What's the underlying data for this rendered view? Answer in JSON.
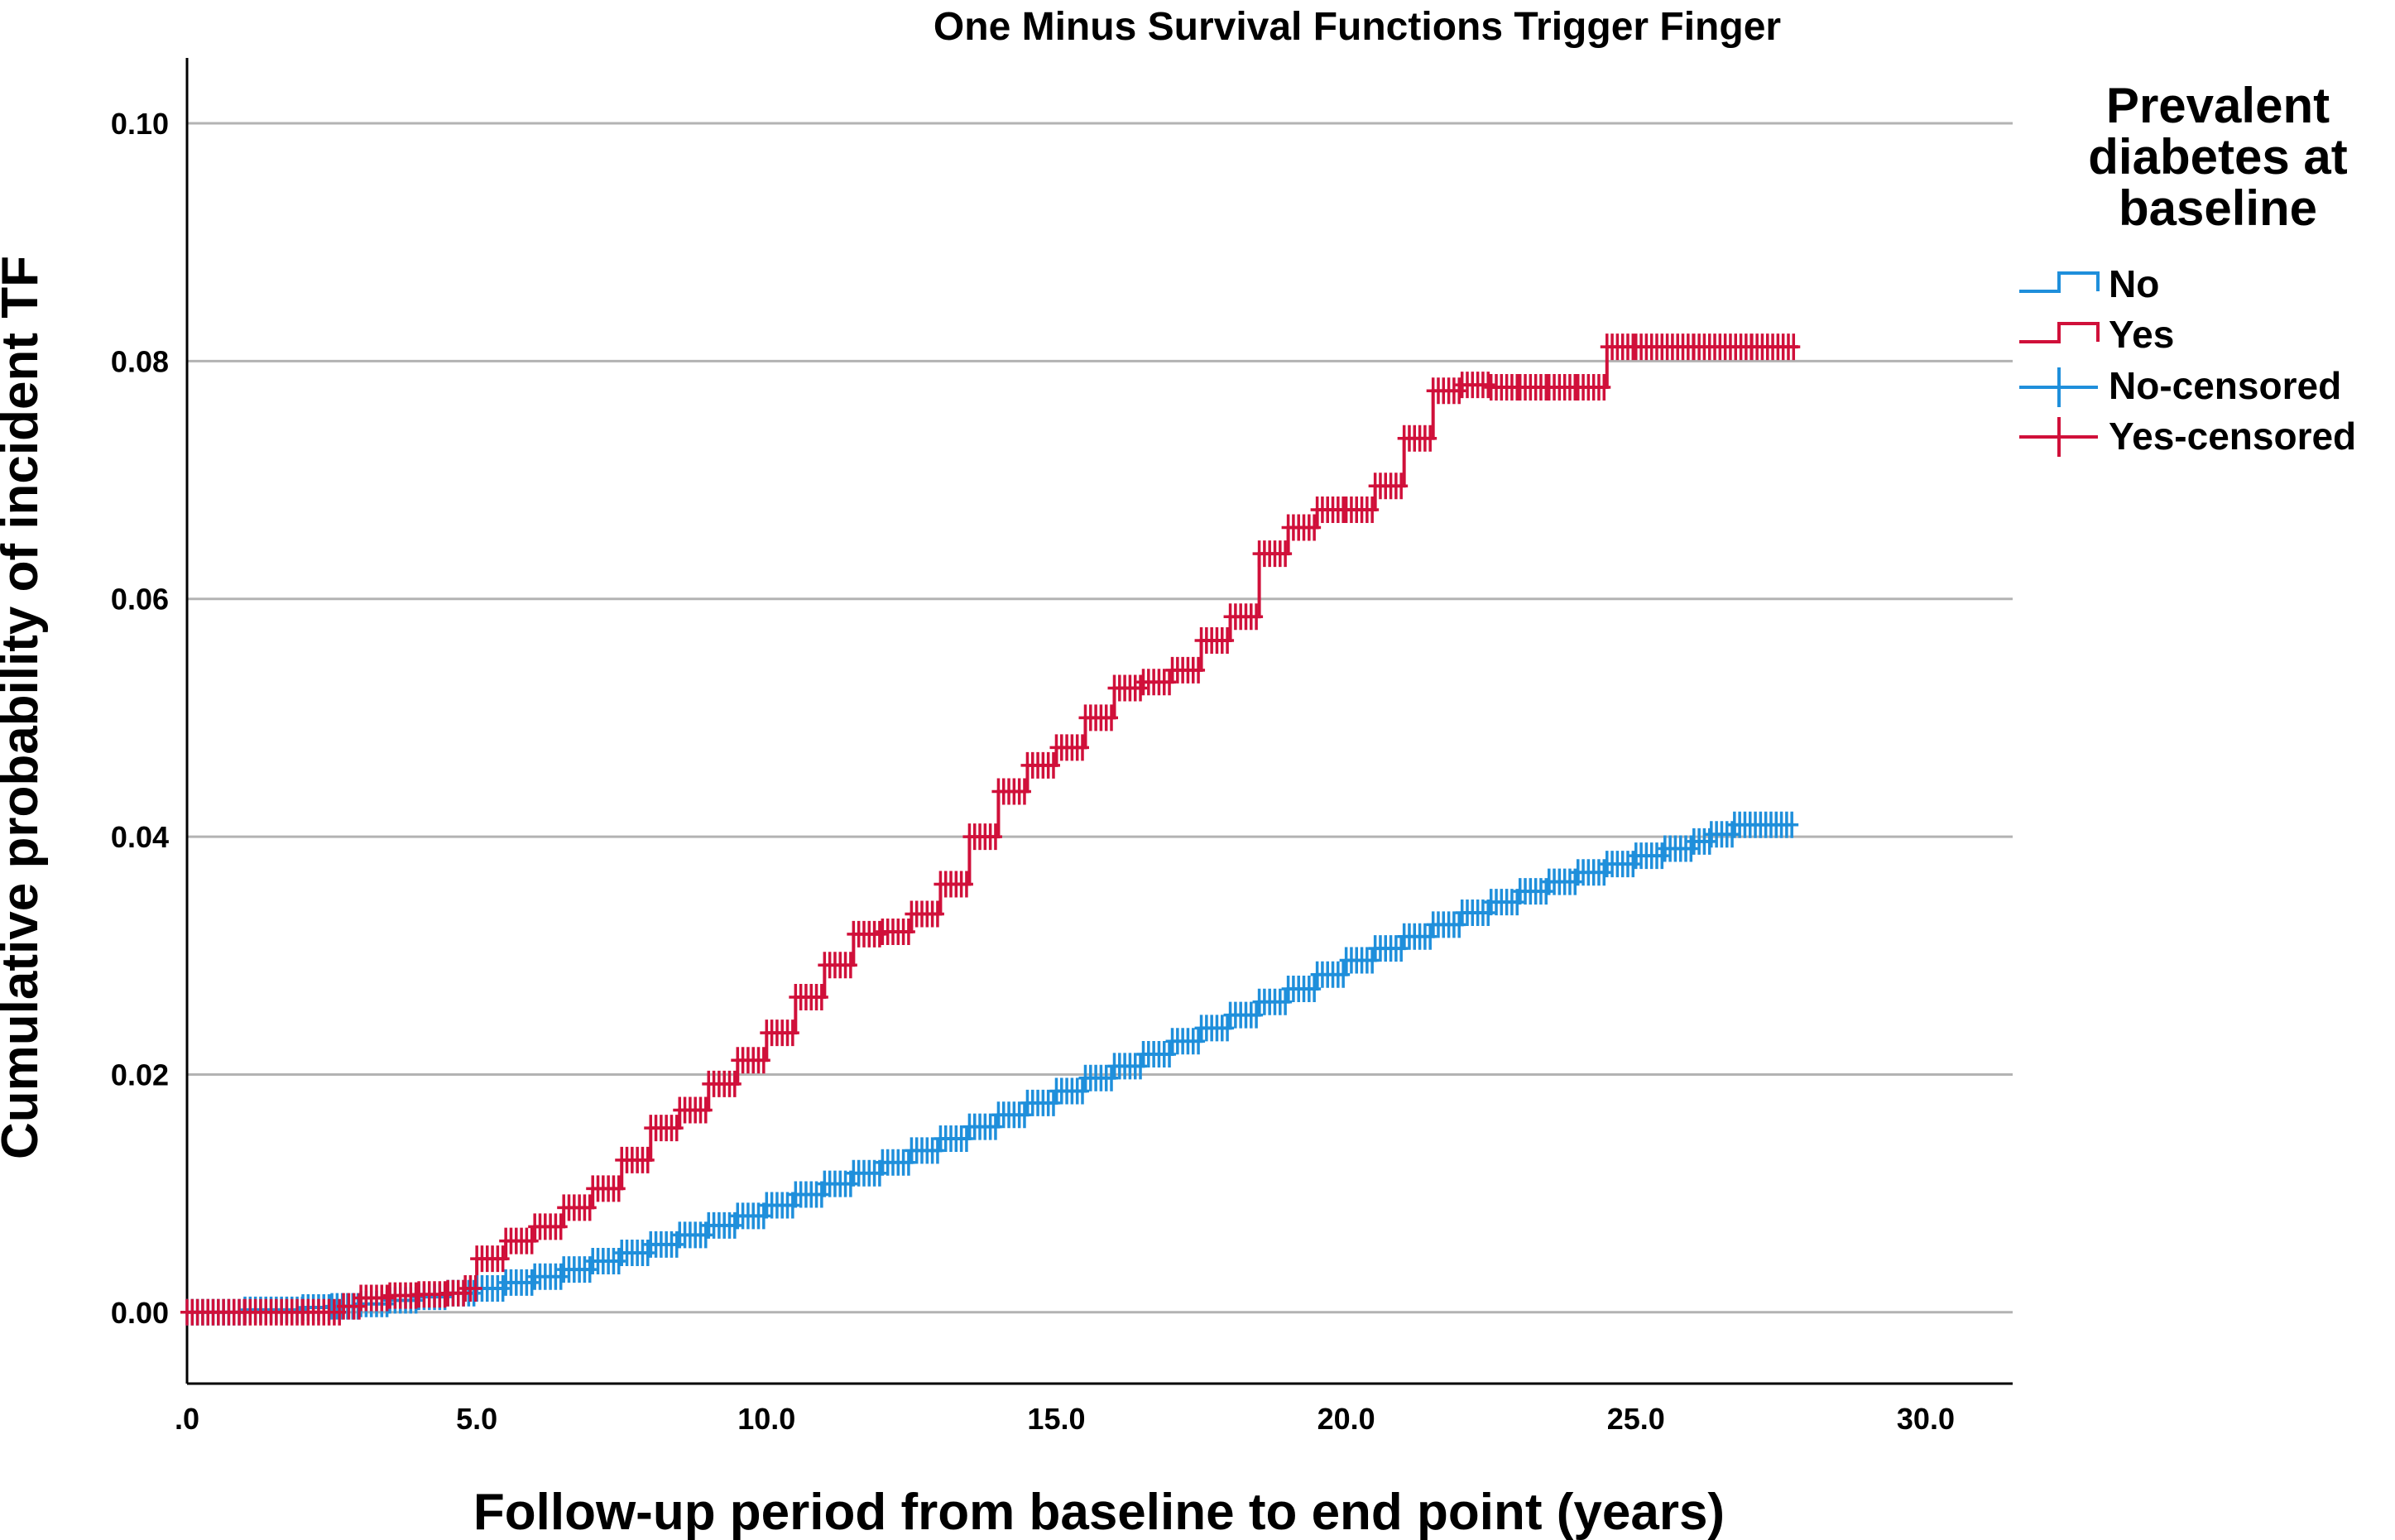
{
  "chart_data": {
    "type": "line",
    "title": "One Minus Survival Functions Trigger Finger",
    "xlabel": "Follow-up period from baseline to end point (years)",
    "ylabel": "Cumulative probability of incident TF",
    "xlim": [
      0,
      31.5
    ],
    "ylim": [
      -0.006,
      0.1055
    ],
    "x_ticks": [
      0,
      5,
      10,
      15,
      20,
      25,
      30
    ],
    "x_tick_labels": [
      ".0",
      "5.0",
      "10.0",
      "15.0",
      "20.0",
      "25.0",
      "30.0"
    ],
    "y_ticks": [
      0,
      0.02,
      0.04,
      0.06,
      0.08,
      0.1
    ],
    "y_tick_labels": [
      "0.00",
      "0.02",
      "0.04",
      "0.06",
      "0.08",
      "0.10"
    ],
    "grid": "horizontal",
    "legend": {
      "title": "Prevalent diabetes at baseline",
      "title_lines": [
        "Prevalent",
        "diabetes at",
        "baseline"
      ],
      "position": "right",
      "entries": [
        "No",
        "Yes",
        "No-censored",
        "Yes-censored"
      ]
    },
    "series": [
      {
        "name": "No",
        "color": "#1f8fdb",
        "x": [
          0,
          1,
          2,
          2.5,
          3,
          3.5,
          4,
          4.5,
          5,
          5.5,
          6,
          6.5,
          7,
          7.5,
          8,
          8.5,
          9,
          9.5,
          10,
          10.5,
          11,
          11.5,
          12,
          12.5,
          13,
          13.5,
          14,
          14.5,
          15,
          15.5,
          16,
          16.5,
          17,
          17.5,
          18,
          18.5,
          19,
          19.5,
          20,
          20.5,
          21,
          21.5,
          22,
          22.5,
          23,
          23.5,
          24,
          24.5,
          25,
          25.5,
          26,
          26.3,
          26.7,
          27.7
        ],
        "y": [
          0,
          0.0002,
          0.0004,
          0.0005,
          0.0007,
          0.001,
          0.0013,
          0.0016,
          0.002,
          0.0025,
          0.003,
          0.0036,
          0.0043,
          0.005,
          0.0057,
          0.0065,
          0.0073,
          0.0081,
          0.009,
          0.0099,
          0.0108,
          0.0117,
          0.0126,
          0.0136,
          0.0146,
          0.0156,
          0.0166,
          0.0176,
          0.0186,
          0.0197,
          0.0207,
          0.0217,
          0.0228,
          0.0239,
          0.025,
          0.0261,
          0.0272,
          0.0284,
          0.0296,
          0.0306,
          0.0316,
          0.0326,
          0.0336,
          0.0345,
          0.0354,
          0.0362,
          0.037,
          0.0377,
          0.0384,
          0.039,
          0.0396,
          0.0402,
          0.041,
          0.041
        ]
      },
      {
        "name": "Yes",
        "color": "#d0103a",
        "x": [
          0,
          1,
          2,
          2.7,
          3,
          3.5,
          4,
          4.5,
          4.8,
          5,
          5.5,
          6,
          6.5,
          7,
          7.5,
          8,
          8.5,
          9,
          9.5,
          10,
          10.5,
          11,
          11.5,
          12,
          12.5,
          13,
          13.5,
          14,
          14.5,
          15,
          15.5,
          16,
          16.5,
          17,
          17.5,
          18,
          18.5,
          19,
          19.5,
          20,
          20.5,
          21,
          21.5,
          22,
          22.5,
          23,
          23.5,
          24,
          24.5,
          25,
          26,
          27,
          27.8
        ],
        "y": [
          0,
          0,
          0,
          0.0005,
          0.0012,
          0.0014,
          0.0015,
          0.0016,
          0.002,
          0.0045,
          0.006,
          0.0072,
          0.0088,
          0.0104,
          0.0128,
          0.0155,
          0.017,
          0.0192,
          0.0212,
          0.0235,
          0.0265,
          0.0292,
          0.0318,
          0.032,
          0.0335,
          0.036,
          0.04,
          0.0438,
          0.046,
          0.0475,
          0.05,
          0.0525,
          0.053,
          0.054,
          0.0565,
          0.0585,
          0.0638,
          0.066,
          0.0675,
          0.0675,
          0.0695,
          0.0735,
          0.0775,
          0.078,
          0.0778,
          0.0778,
          0.0778,
          0.0778,
          0.0812,
          0.0812,
          0.0812,
          0.0812,
          0.0812
        ]
      }
    ]
  }
}
